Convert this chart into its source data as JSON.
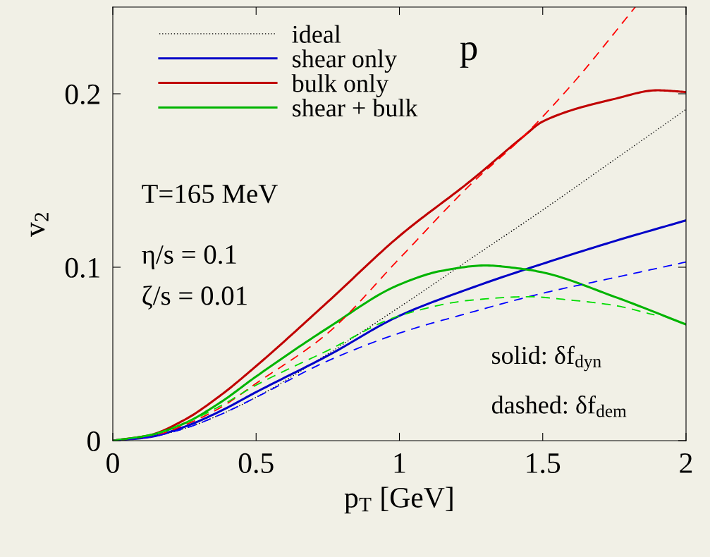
{
  "chart_data": {
    "type": "line",
    "xlabel": "p$_{T}$ [GeV]",
    "ylabel": "v$_{2}$",
    "xlim": [
      0,
      2
    ],
    "ylim": [
      0,
      0.25
    ],
    "xticks": [
      0,
      0.5,
      1,
      1.5,
      2
    ],
    "yticks": [
      0,
      0.1,
      0.2
    ],
    "grid": false,
    "legend": "top left",
    "marker": "none",
    "series": [
      {
        "name": "ideal",
        "color": "#000000",
        "line_style": "dotted",
        "x": [
          0,
          0.125,
          0.25,
          0.375,
          0.5,
          0.75,
          1,
          1.25,
          1.5,
          1.75,
          2
        ],
        "values": [
          0,
          0.002,
          0.007,
          0.015,
          0.025,
          0.05,
          0.077,
          0.105,
          0.133,
          0.162,
          0.191
        ]
      },
      {
        "name": "shear only",
        "color": "#0000c8",
        "line_style": "solid",
        "x": [
          0,
          0.125,
          0.25,
          0.375,
          0.5,
          0.75,
          1,
          1.25,
          1.5,
          1.75,
          2
        ],
        "values": [
          0,
          0.002,
          0.008,
          0.017,
          0.028,
          0.049,
          0.072,
          0.088,
          0.102,
          0.115,
          0.127
        ]
      },
      {
        "name": "bulk only",
        "color": "#c00000",
        "line_style": "solid",
        "x": [
          0,
          0.125,
          0.25,
          0.375,
          0.5,
          0.75,
          1,
          1.25,
          1.43,
          1.5,
          1.75,
          1.9,
          2
        ],
        "values": [
          0,
          0.003,
          0.012,
          0.026,
          0.043,
          0.08,
          0.118,
          0.15,
          0.175,
          0.184,
          0.197,
          0.202,
          0.201
        ]
      },
      {
        "name": "shear + bulk",
        "color": "#00b400",
        "line_style": "solid",
        "x": [
          0,
          0.125,
          0.25,
          0.375,
          0.5,
          0.75,
          1,
          1.15,
          1.3,
          1.43,
          1.5,
          1.75,
          2
        ],
        "values": [
          0,
          0.003,
          0.01,
          0.022,
          0.037,
          0.065,
          0.09,
          0.098,
          0.101,
          0.099,
          0.097,
          0.083,
          0.067
        ]
      },
      {
        "color": "#ff0000",
        "line_style": "dashed",
        "x": [
          0,
          0.125,
          0.25,
          0.375,
          0.5,
          0.75,
          1,
          1.25,
          1.43,
          1.6,
          1.823
        ],
        "values": [
          0,
          0.002,
          0.009,
          0.019,
          0.033,
          0.062,
          0.105,
          0.148,
          0.175,
          0.205,
          0.25
        ]
      },
      {
        "color": "#0000ff",
        "line_style": "dashed",
        "x": [
          0,
          0.125,
          0.25,
          0.375,
          0.5,
          0.75,
          1,
          1.25,
          1.5,
          1.75,
          2
        ],
        "values": [
          0,
          0.002,
          0.007,
          0.015,
          0.025,
          0.046,
          0.062,
          0.074,
          0.085,
          0.094,
          0.103
        ]
      },
      {
        "color": "#00dd00",
        "line_style": "dashed",
        "x": [
          0,
          0.125,
          0.25,
          0.375,
          0.5,
          0.75,
          1,
          1.25,
          1.45,
          1.6,
          1.75,
          1.89
        ],
        "values": [
          0,
          0.003,
          0.01,
          0.02,
          0.032,
          0.052,
          0.072,
          0.081,
          0.083,
          0.081,
          0.078,
          0.0725
        ]
      }
    ],
    "annotations": [
      "p",
      "T=165 MeV",
      "η/s = 0.1",
      "ζ/s = 0.01",
      "solid: δf$_{dyn}$",
      "dashed: δf$_{dem}$"
    ]
  }
}
